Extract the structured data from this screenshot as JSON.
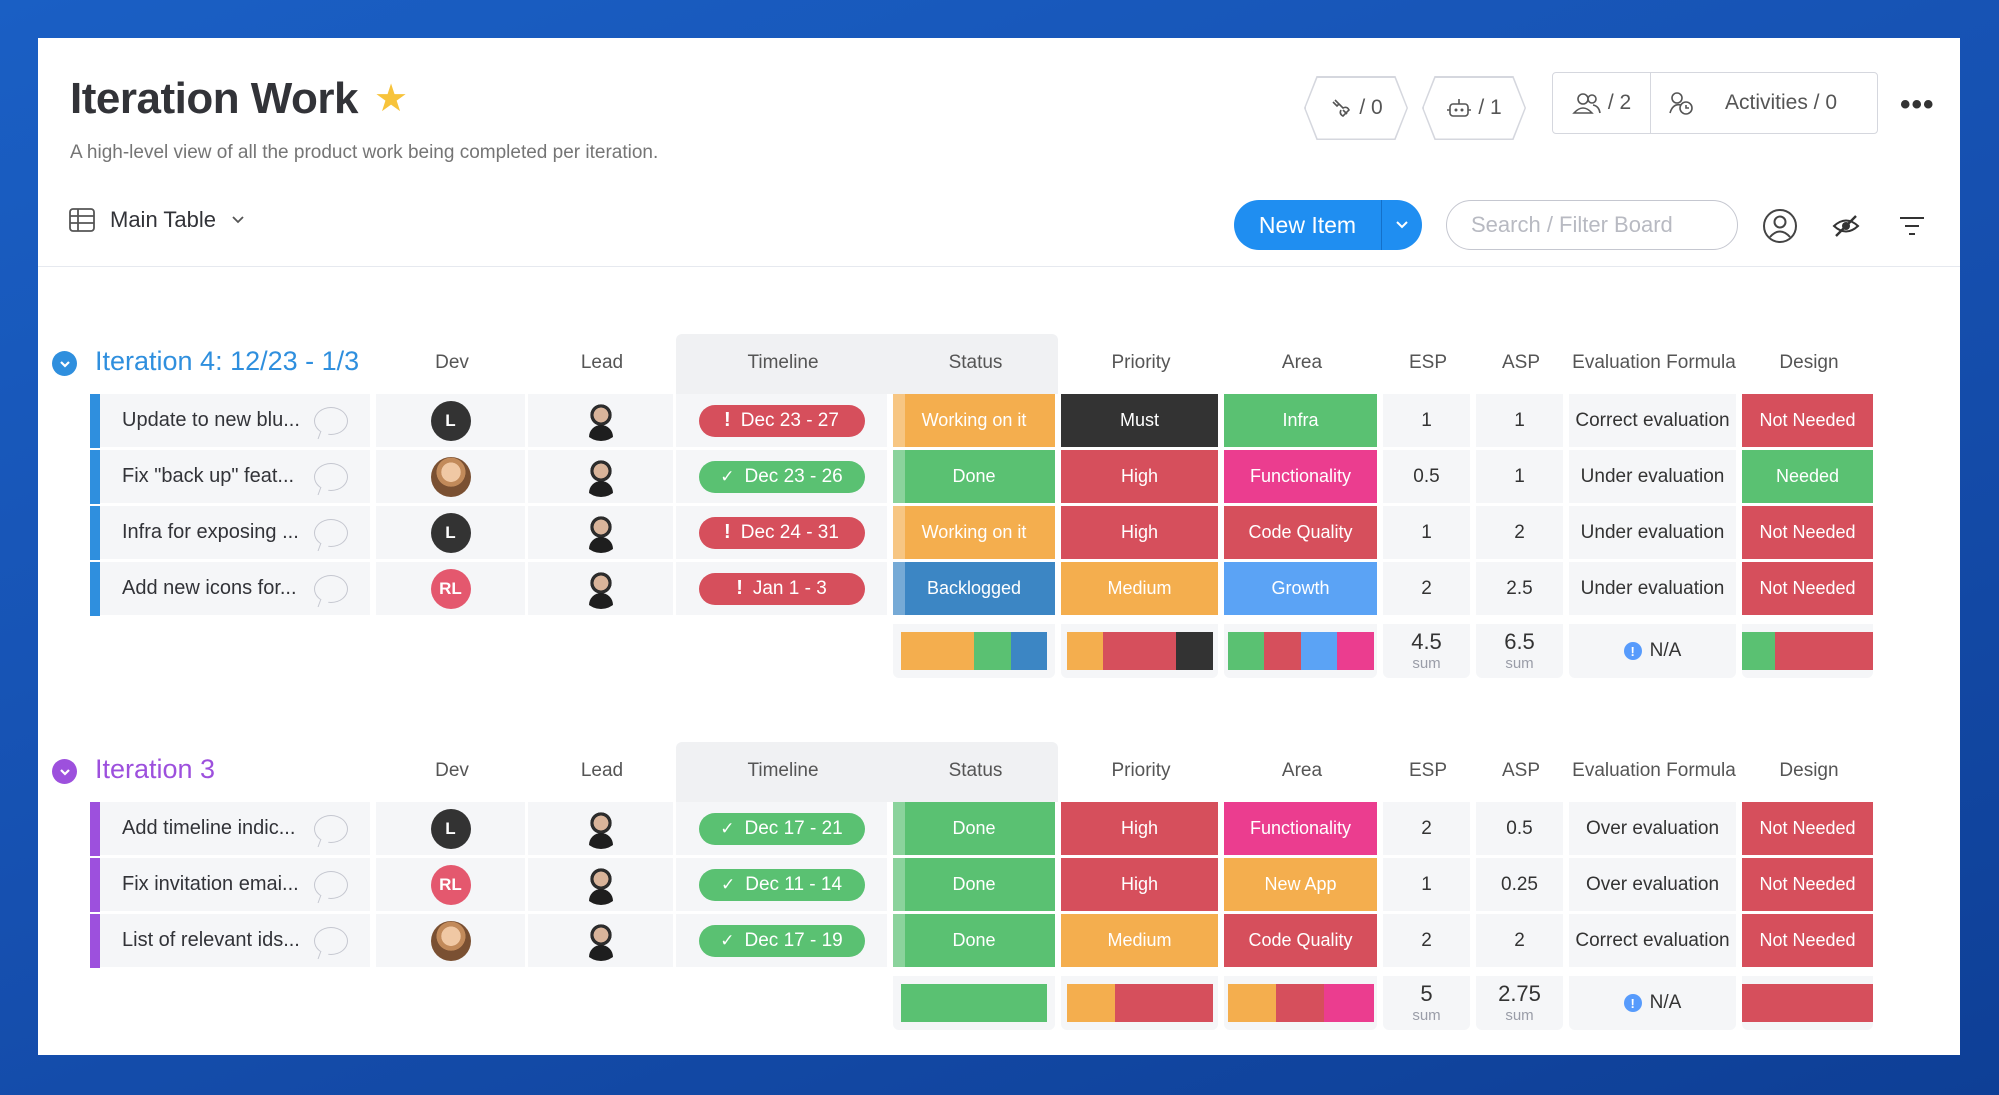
{
  "board": {
    "title": "Iteration Work",
    "subtitle": "A high-level view of all the product work being completed per iteration."
  },
  "header": {
    "integrations_count": "/ 0",
    "automations_count": "/ 1",
    "members_count": "/ 2",
    "activities_label": "Activities / 0"
  },
  "toolbar": {
    "view_label": "Main Table",
    "new_item_label": "New Item",
    "search_placeholder": "Search / Filter Board"
  },
  "columns": {
    "dev": "Dev",
    "lead": "Lead",
    "timeline": "Timeline",
    "status": "Status",
    "priority": "Priority",
    "area": "Area",
    "esp": "ESP",
    "asp": "ASP",
    "eval": "Evaluation Formula",
    "design": "Design"
  },
  "colors": {
    "orange": "#f4ae4e",
    "green": "#5ac172",
    "red": "#d64f5c",
    "dark": "#333333",
    "pink": "#eb3d8f",
    "blue": "#3c86c4",
    "lightblue": "#5ba3f5",
    "purple": "#9d50dd",
    "groupblue": "#2f8fde"
  },
  "groups": [
    {
      "title": "Iteration 4: 12/23 - 1/3",
      "color": "#2f8fde",
      "rows": [
        {
          "name": "Update to new blu...",
          "dev": {
            "type": "letter",
            "text": "L",
            "style": "dark"
          },
          "timeline": "Dec 23 - 27",
          "timeline_state": "overdue",
          "status": "Working on it",
          "priority": "Must",
          "area": "Infra",
          "esp": "1",
          "asp": "1",
          "eval": "Correct evaluation",
          "design": "Not Needed"
        },
        {
          "name": "Fix \"back up\" feat...",
          "dev": {
            "type": "photo",
            "text": "",
            "style": "photo"
          },
          "timeline": "Dec 23 - 26",
          "timeline_state": "done",
          "status": "Done",
          "priority": "High",
          "area": "Functionality",
          "esp": "0.5",
          "asp": "1",
          "eval": "Under evaluation",
          "design": "Needed"
        },
        {
          "name": "Infra for exposing ...",
          "dev": {
            "type": "letter",
            "text": "L",
            "style": "dark"
          },
          "timeline": "Dec 24 - 31",
          "timeline_state": "overdue",
          "status": "Working on it",
          "priority": "High",
          "area": "Code Quality",
          "esp": "1",
          "asp": "2",
          "eval": "Under evaluation",
          "design": "Not Needed"
        },
        {
          "name": "Add new icons for...",
          "dev": {
            "type": "letter",
            "text": "RL",
            "style": "pink"
          },
          "timeline": "Jan 1 - 3",
          "timeline_state": "overdue",
          "status": "Backlogged",
          "priority": "Medium",
          "area": "Growth",
          "esp": "2",
          "asp": "2.5",
          "eval": "Under evaluation",
          "design": "Not Needed"
        }
      ],
      "summary": {
        "status_bar": [
          [
            "#f4ae4e",
            0.5
          ],
          [
            "#5ac172",
            0.25
          ],
          [
            "#3c86c4",
            0.25
          ]
        ],
        "priority_bar": [
          [
            "#f4ae4e",
            0.25
          ],
          [
            "#d64f5c",
            0.5
          ],
          [
            "#333333",
            0.25
          ]
        ],
        "area_bar": [
          [
            "#5ac172",
            0.25
          ],
          [
            "#d64f5c",
            0.25
          ],
          [
            "#5ba3f5",
            0.25
          ],
          [
            "#eb3d8f",
            0.25
          ]
        ],
        "design_bar": [
          [
            "#5ac172",
            0.25
          ],
          [
            "#d64f5c",
            0.75
          ]
        ],
        "esp_sum": "4.5",
        "asp_sum": "6.5",
        "sum_label": "sum",
        "eval_summary": "N/A"
      }
    },
    {
      "title": "Iteration 3",
      "color": "#9d50dd",
      "rows": [
        {
          "name": "Add timeline indic...",
          "dev": {
            "type": "letter",
            "text": "L",
            "style": "dark"
          },
          "timeline": "Dec 17 - 21",
          "timeline_state": "done",
          "status": "Done",
          "priority": "High",
          "area": "Functionality",
          "esp": "2",
          "asp": "0.5",
          "eval": "Over evaluation",
          "design": "Not Needed"
        },
        {
          "name": "Fix invitation emai...",
          "dev": {
            "type": "letter",
            "text": "RL",
            "style": "pink"
          },
          "timeline": "Dec 11 - 14",
          "timeline_state": "done",
          "status": "Done",
          "priority": "High",
          "area": "New App",
          "esp": "1",
          "asp": "0.25",
          "eval": "Over evaluation",
          "design": "Not Needed"
        },
        {
          "name": "List of relevant ids...",
          "dev": {
            "type": "photo",
            "text": "",
            "style": "photo"
          },
          "timeline": "Dec 17 - 19",
          "timeline_state": "done",
          "status": "Done",
          "priority": "Medium",
          "area": "Code Quality",
          "esp": "2",
          "asp": "2",
          "eval": "Correct evaluation",
          "design": "Not Needed"
        }
      ],
      "summary": {
        "status_bar": [
          [
            "#5ac172",
            1.0
          ]
        ],
        "priority_bar": [
          [
            "#f4ae4e",
            0.33
          ],
          [
            "#d64f5c",
            0.67
          ]
        ],
        "area_bar": [
          [
            "#f4ae4e",
            0.33
          ],
          [
            "#d64f5c",
            0.33
          ],
          [
            "#eb3d8f",
            0.34
          ]
        ],
        "design_bar": [
          [
            "#d64f5c",
            1.0
          ]
        ],
        "esp_sum": "5",
        "asp_sum": "2.75",
        "sum_label": "sum",
        "eval_summary": "N/A"
      }
    }
  ]
}
